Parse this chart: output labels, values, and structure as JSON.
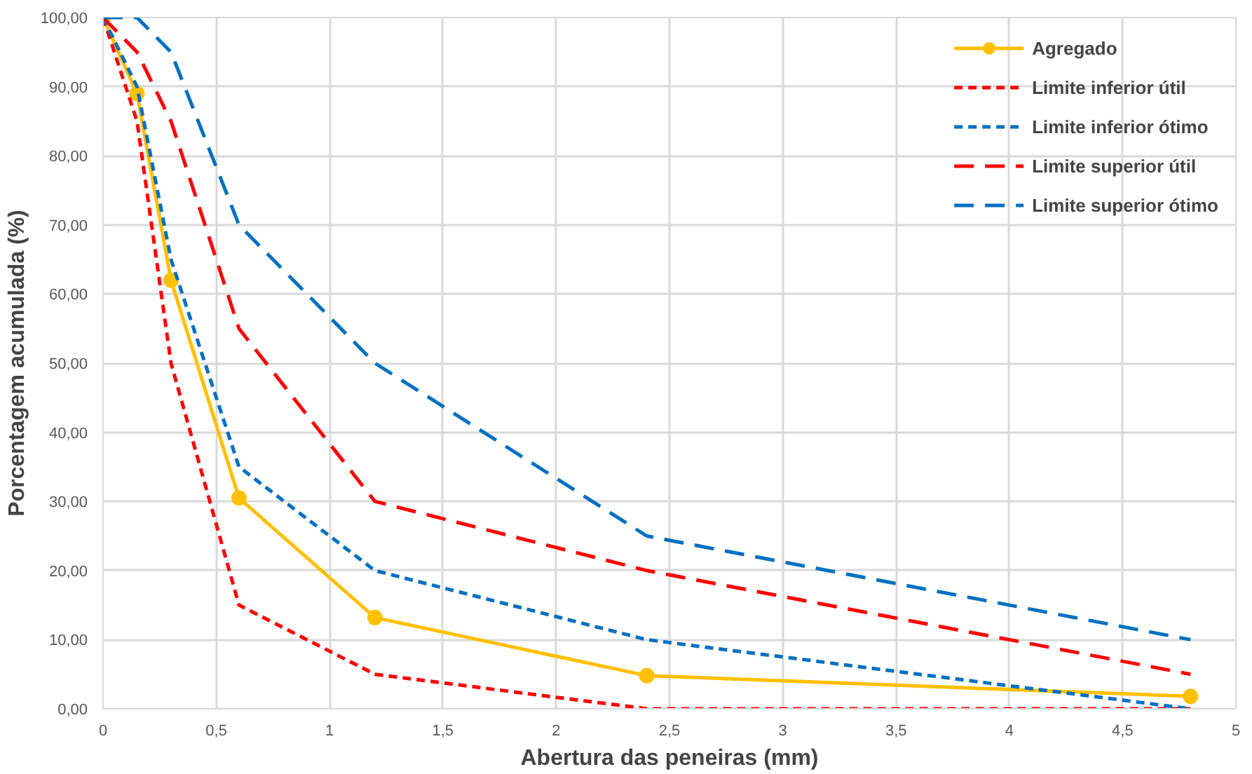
{
  "chart_data": {
    "type": "line",
    "xlabel": "Abertura das peneiras (mm)",
    "ylabel": "Porcentagem acumulada (%)",
    "x": [
      0,
      0.15,
      0.3,
      0.6,
      1.2,
      2.4,
      4.8
    ],
    "series": [
      {
        "name": "Agregado",
        "color": "#ffc000",
        "marker": "circle",
        "line_style": "solid",
        "values": [
          100,
          89,
          62,
          30.5,
          13.2,
          4.8,
          1.8
        ]
      },
      {
        "name": "Limite inferior útil",
        "color": "#ff0000",
        "marker": "none",
        "line_style": "dashed",
        "values": [
          100,
          85,
          50,
          15,
          5,
          0,
          0
        ]
      },
      {
        "name": "Limite inferior ótimo",
        "color": "#0070c0",
        "marker": "none",
        "line_style": "dashed",
        "values": [
          100,
          90,
          65,
          35,
          20,
          10,
          0
        ]
      },
      {
        "name": "Limite superior útil",
        "color": "#ff0000",
        "marker": "none",
        "line_style": "longdash",
        "values": [
          100,
          95,
          85,
          55,
          30,
          20,
          5
        ]
      },
      {
        "name": "Limite superior ótimo",
        "color": "#0070c0",
        "marker": "none",
        "line_style": "longdash",
        "values": [
          100,
          100,
          95,
          70,
          50,
          25,
          10
        ]
      }
    ],
    "xlim": [
      0,
      5
    ],
    "ylim": [
      0,
      100
    ],
    "xticks": [
      0,
      {
        "value": 0.5,
        "label": "0,5"
      },
      1,
      {
        "value": 1.5,
        "label": "1,5"
      },
      2,
      {
        "value": 2.5,
        "label": "2,5"
      },
      3,
      {
        "value": 3.5,
        "label": "3,5"
      },
      4,
      {
        "value": 4.5,
        "label": "4,5"
      },
      5
    ],
    "yticks": [
      {
        "value": 0,
        "label": "0,00"
      },
      {
        "value": 10,
        "label": "10,00"
      },
      {
        "value": 20,
        "label": "20,00"
      },
      {
        "value": 30,
        "label": "30,00"
      },
      {
        "value": 40,
        "label": "40,00"
      },
      {
        "value": 50,
        "label": "50,00"
      },
      {
        "value": 60,
        "label": "60,00"
      },
      {
        "value": 70,
        "label": "70,00"
      },
      {
        "value": 80,
        "label": "80,00"
      },
      {
        "value": 90,
        "label": "90,00"
      },
      {
        "value": 100,
        "label": "100,00"
      }
    ],
    "grid": true,
    "legend": "top right"
  }
}
